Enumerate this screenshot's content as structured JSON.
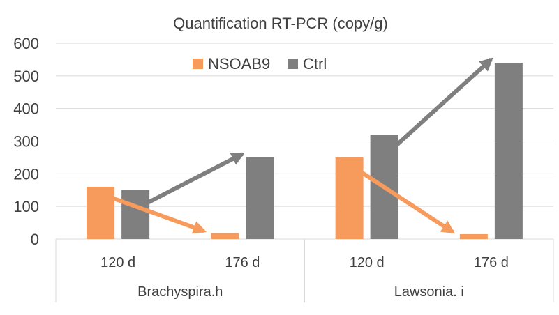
{
  "chart_data": {
    "type": "bar",
    "title": "Quantification RT-PCR (copy/g)",
    "xlabel": "",
    "ylabel": "",
    "ylim": [
      0,
      600
    ],
    "yticks": [
      0,
      100,
      200,
      300,
      400,
      500,
      600
    ],
    "grid": true,
    "legend_position": "top-center",
    "groups": [
      {
        "name": "Brachyspira.h",
        "categories": [
          "120 d",
          "176 d"
        ]
      },
      {
        "name": "Lawsonia. i",
        "categories": [
          "120 d",
          "176 d"
        ]
      }
    ],
    "categories": [
      "120 d",
      "176 d",
      "120 d",
      "176 d"
    ],
    "series": [
      {
        "name": "NSOAB9",
        "color": "#f79b5c",
        "values": [
          160,
          18,
          250,
          15
        ]
      },
      {
        "name": "Ctrl",
        "color": "#7f7f7f",
        "values": [
          150,
          250,
          320,
          540
        ]
      }
    ],
    "annotations": [
      {
        "type": "arrow",
        "series": "NSOAB9",
        "from_category": 0,
        "to_category": 1,
        "color": "#f79b5c"
      },
      {
        "type": "arrow",
        "series": "Ctrl",
        "from_category": 0,
        "to_category": 1,
        "color": "#7f7f7f"
      },
      {
        "type": "arrow",
        "series": "NSOAB9",
        "from_category": 2,
        "to_category": 3,
        "color": "#f79b5c"
      },
      {
        "type": "arrow",
        "series": "Ctrl",
        "from_category": 2,
        "to_category": 3,
        "color": "#7f7f7f"
      }
    ]
  }
}
